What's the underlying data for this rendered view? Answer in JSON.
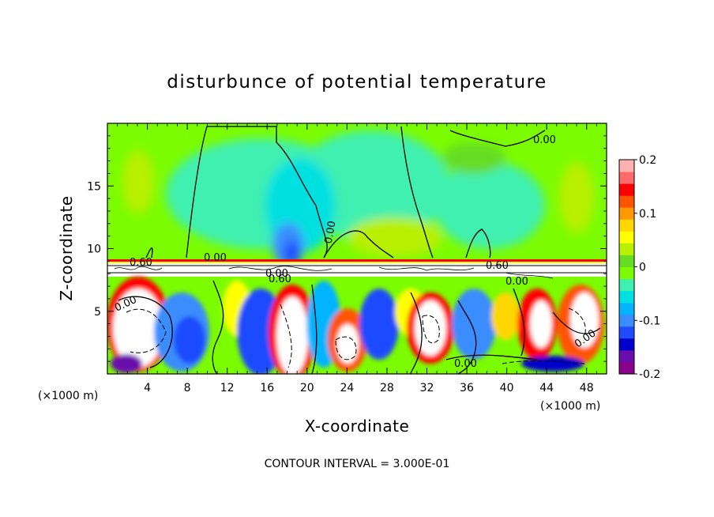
{
  "chart_data": {
    "type": "heatmap",
    "title": "disturbunce of potential temperature",
    "xlabel": "X-coordinate",
    "ylabel": "Z-coordinate",
    "x_unit_label": "(×1000 m)",
    "y_unit_label": "(×1000 m)",
    "xlim": [
      0,
      50
    ],
    "ylim": [
      0,
      20
    ],
    "x_ticks": [
      4,
      8,
      12,
      16,
      20,
      24,
      28,
      32,
      36,
      40,
      44,
      48
    ],
    "y_ticks": [
      5,
      10,
      15
    ],
    "colorbar": {
      "range": [
        -0.2,
        0.2
      ],
      "ticks": [
        "0.2",
        "0.1",
        "0",
        "-0.1",
        "-0.2"
      ],
      "tick_values": [
        0.2,
        0.1,
        0,
        -0.1,
        -0.2
      ],
      "colors": [
        "#8B008B",
        "#6A0DAD",
        "#0000CD",
        "#1E4BFF",
        "#3A8CFF",
        "#00B4FF",
        "#00E0E0",
        "#40F0B0",
        "#7CFC00",
        "#66DD22",
        "#B8F000",
        "#FFFF00",
        "#FFD700",
        "#FF9900",
        "#FF5500",
        "#FF0000",
        "#FF6B6B",
        "#FFB0B0"
      ]
    },
    "contour_labels": [
      "0.00",
      "0.00",
      "0.00",
      "0.00",
      "0.00",
      "0.00",
      "0.60",
      "0.60",
      "0.60",
      "0.00",
      "0.00"
    ],
    "contour_interval_text": "CONTOUR INTERVAL = 3.000E-01"
  }
}
